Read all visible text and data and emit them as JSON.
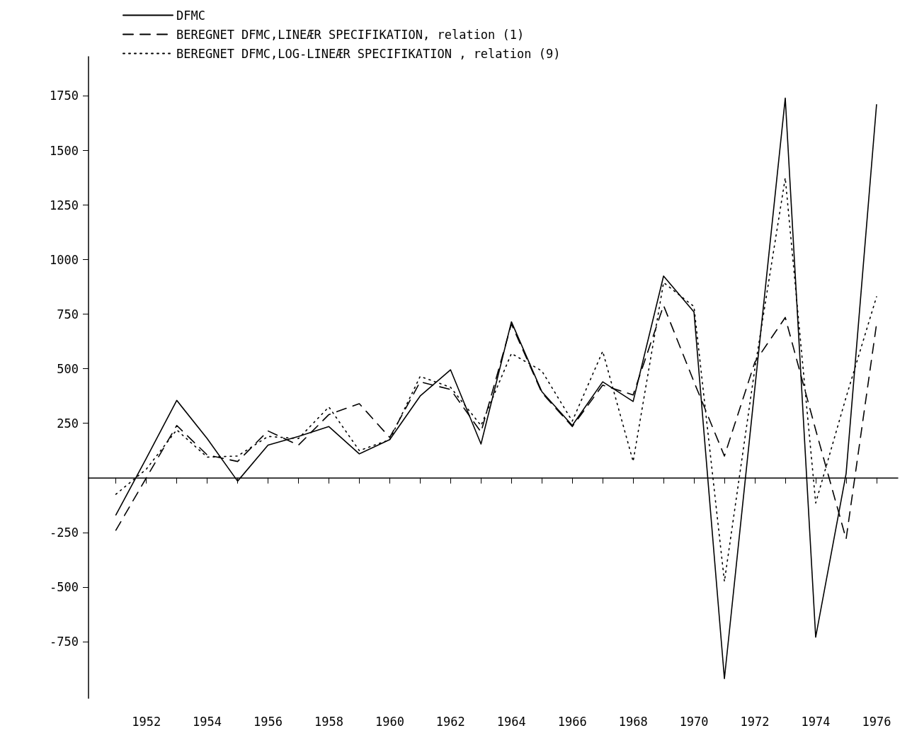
{
  "chart_data": {
    "type": "line",
    "x": [
      1951,
      1952,
      1953,
      1954,
      1955,
      1956,
      1957,
      1958,
      1959,
      1960,
      1961,
      1962,
      1963,
      1964,
      1965,
      1966,
      1967,
      1968,
      1969,
      1970,
      1971,
      1972,
      1973,
      1974,
      1975,
      1976
    ],
    "series": [
      {
        "name": "DFMC",
        "color": "#000000",
        "line_style": "solid",
        "values": [
          -170,
          90,
          355,
          180,
          -15,
          150,
          190,
          235,
          110,
          175,
          375,
          495,
          155,
          715,
          395,
          240,
          440,
          350,
          925,
          760,
          -920,
          410,
          1740,
          -730,
          20,
          1710
        ]
      },
      {
        "name": "BEREGNET DFMC,LINEÆR SPECIFIKATION, relation (1)",
        "color": "#000000",
        "line_style": "dashed",
        "values": [
          -240,
          0,
          240,
          105,
          75,
          215,
          150,
          290,
          340,
          185,
          440,
          405,
          210,
          705,
          390,
          235,
          425,
          380,
          790,
          440,
          100,
          530,
          735,
          220,
          -280,
          705
        ]
      },
      {
        "name": "BEREGNET DFMC,LOG-LINEÆR SPECIFIKATION , relation (9)",
        "color": "#000000",
        "line_style": "dotted",
        "values": [
          -75,
          40,
          220,
          95,
          100,
          190,
          180,
          325,
          125,
          175,
          465,
          415,
          240,
          570,
          490,
          260,
          580,
          75,
          895,
          785,
          -475,
          500,
          1375,
          -115,
          370,
          830
        ]
      }
    ],
    "xlim": [
      1950.1,
      1976.7
    ],
    "xticks": [
      {
        "value": 1951,
        "label": null
      },
      1952,
      {
        "value": 1953,
        "label": null
      },
      1954,
      {
        "value": 1955,
        "label": null
      },
      1956,
      {
        "value": 1957,
        "label": null
      },
      1958,
      {
        "value": 1959,
        "label": null
      },
      1960,
      {
        "value": 1961,
        "label": null
      },
      1962,
      {
        "value": 1963,
        "label": null
      },
      1964,
      {
        "value": 1965,
        "label": null
      },
      1966,
      {
        "value": 1967,
        "label": null
      },
      1968,
      {
        "value": 1969,
        "label": null
      },
      1970,
      {
        "value": 1971,
        "label": null
      },
      1972,
      {
        "value": 1973,
        "label": null
      },
      1974,
      {
        "value": 1975,
        "label": null
      },
      1976
    ],
    "ylim": [
      -1010,
      1930
    ],
    "yticks": [
      -750,
      -500,
      -250,
      250,
      500,
      750,
      1000,
      1250,
      1500,
      1750
    ],
    "grid": false,
    "legend": "top left",
    "marker": "none"
  }
}
